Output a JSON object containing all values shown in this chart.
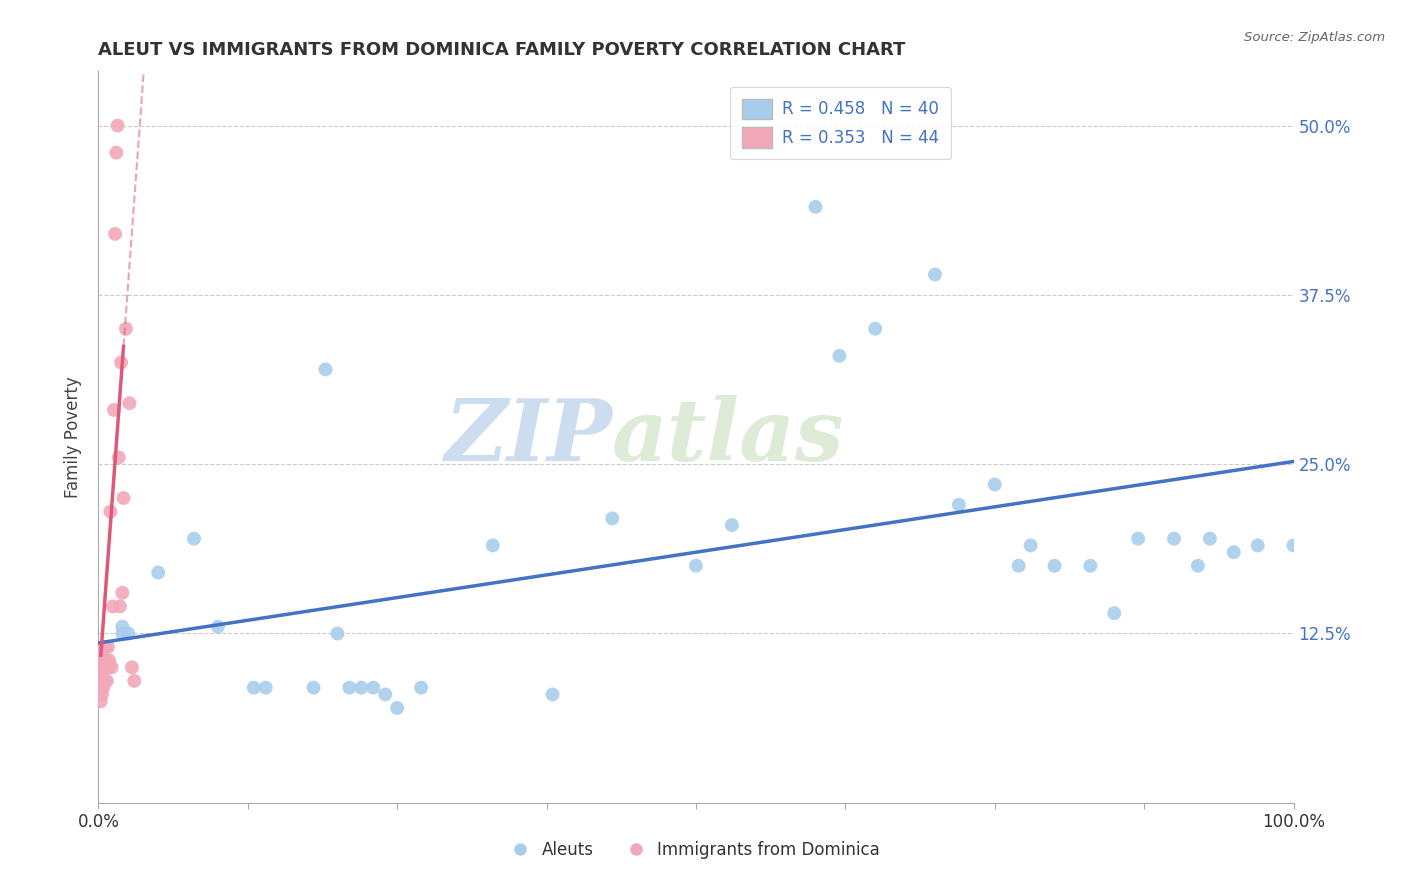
{
  "title": "ALEUT VS IMMIGRANTS FROM DOMINICA FAMILY POVERTY CORRELATION CHART",
  "source": "Source: ZipAtlas.com",
  "ylabel": "Family Poverty",
  "legend_labels": [
    "Aleuts",
    "Immigrants from Dominica"
  ],
  "r_aleuts": 0.458,
  "n_aleuts": 40,
  "r_dominica": 0.353,
  "n_dominica": 44,
  "aleuts_color": "#A8CDEC",
  "dominica_color": "#F2A8B8",
  "trend_aleuts_color": "#4472C4",
  "trend_dominica_color": "#E05878",
  "xlim": [
    0,
    1.0
  ],
  "ylim": [
    0,
    0.54
  ],
  "xticks": [
    0.0,
    0.125,
    0.25,
    0.375,
    0.5,
    0.625,
    0.75,
    0.875,
    1.0
  ],
  "xticklabels": [
    "0.0%",
    "",
    "",
    "",
    "",
    "",
    "",
    "",
    "100.0%"
  ],
  "yticks": [
    0.0,
    0.125,
    0.25,
    0.375,
    0.5
  ],
  "yticklabels_right": [
    "",
    "12.5%",
    "25.0%",
    "37.5%",
    "50.0%"
  ],
  "watermark_zip": "ZIP",
  "watermark_atlas": "atlas",
  "aleuts_x": [
    0.02,
    0.02,
    0.025,
    0.05,
    0.08,
    0.1,
    0.13,
    0.14,
    0.18,
    0.19,
    0.2,
    0.21,
    0.22,
    0.23,
    0.24,
    0.25,
    0.27,
    0.33,
    0.38,
    0.43,
    0.5,
    0.53,
    0.6,
    0.62,
    0.65,
    0.7,
    0.72,
    0.75,
    0.77,
    0.78,
    0.8,
    0.83,
    0.85,
    0.87,
    0.9,
    0.92,
    0.93,
    0.95,
    0.97,
    1.0
  ],
  "aleuts_y": [
    0.125,
    0.13,
    0.125,
    0.17,
    0.195,
    0.13,
    0.085,
    0.085,
    0.085,
    0.32,
    0.125,
    0.085,
    0.085,
    0.085,
    0.08,
    0.07,
    0.085,
    0.19,
    0.08,
    0.21,
    0.175,
    0.205,
    0.44,
    0.33,
    0.35,
    0.39,
    0.22,
    0.235,
    0.175,
    0.19,
    0.175,
    0.175,
    0.14,
    0.195,
    0.195,
    0.175,
    0.195,
    0.185,
    0.19,
    0.19
  ],
  "dominica_x": [
    0.002,
    0.002,
    0.002,
    0.002,
    0.002,
    0.002,
    0.002,
    0.003,
    0.003,
    0.003,
    0.003,
    0.003,
    0.004,
    0.004,
    0.004,
    0.004,
    0.005,
    0.005,
    0.005,
    0.005,
    0.006,
    0.006,
    0.006,
    0.007,
    0.007,
    0.008,
    0.008,
    0.009,
    0.01,
    0.011,
    0.012,
    0.013,
    0.014,
    0.015,
    0.016,
    0.017,
    0.018,
    0.019,
    0.02,
    0.021,
    0.023,
    0.026,
    0.028,
    0.03
  ],
  "dominica_y": [
    0.075,
    0.085,
    0.09,
    0.095,
    0.1,
    0.105,
    0.11,
    0.08,
    0.09,
    0.095,
    0.1,
    0.11,
    0.085,
    0.09,
    0.1,
    0.115,
    0.09,
    0.1,
    0.105,
    0.115,
    0.09,
    0.1,
    0.115,
    0.09,
    0.105,
    0.1,
    0.115,
    0.105,
    0.215,
    0.1,
    0.145,
    0.29,
    0.42,
    0.48,
    0.5,
    0.255,
    0.145,
    0.325,
    0.155,
    0.225,
    0.35,
    0.295,
    0.1,
    0.09
  ],
  "trend_aleuts_x0": 0.0,
  "trend_aleuts_y0": 0.118,
  "trend_aleuts_x1": 1.0,
  "trend_aleuts_y1": 0.252,
  "trend_dominica_x_solid_start": 0.002,
  "trend_dominica_x_solid_end": 0.021,
  "trend_dominica_slope": 12.0,
  "trend_dominica_intercept": 0.085,
  "trend_dominica_dash_end": 0.28
}
